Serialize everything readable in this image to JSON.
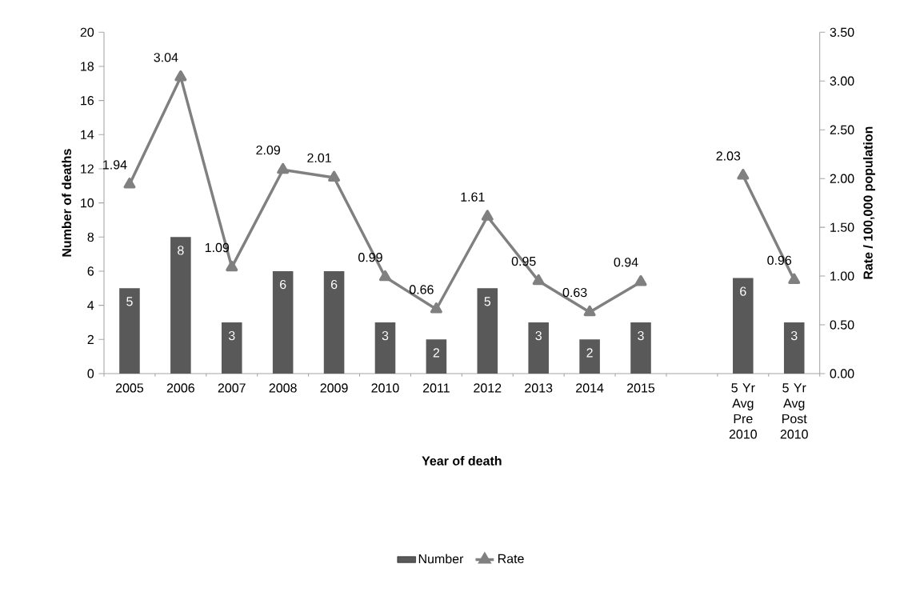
{
  "chart_data": {
    "type": "bar",
    "categories": [
      "2005",
      "2006",
      "2007",
      "2008",
      "2009",
      "2010",
      "2011",
      "2012",
      "2013",
      "2014",
      "2015",
      null,
      "5 Yr Avg Pre 2010",
      "5 Yr Avg Post 2010"
    ],
    "series": [
      {
        "name": "Number",
        "color": "#595959",
        "values": [
          5,
          8,
          3,
          6,
          6,
          3,
          2,
          5,
          3,
          2,
          3,
          null,
          5.6,
          3
        ],
        "value_labels": [
          "5",
          "8",
          "3",
          "6",
          "6",
          "3",
          "2",
          "5",
          "3",
          "2",
          "3",
          null,
          "6",
          "3"
        ]
      },
      {
        "name": "Rate",
        "type": "line",
        "axis": "y2",
        "color": "#808080",
        "values": [
          1.94,
          3.04,
          1.09,
          2.09,
          2.01,
          0.99,
          0.66,
          1.61,
          0.95,
          0.63,
          0.94,
          null,
          2.03,
          0.96
        ],
        "value_labels": [
          "1.94",
          "3.04",
          "1.09",
          "2.09",
          "2.01",
          "0.99",
          "0.66",
          "1.61",
          "0.95",
          "0.63",
          "0.94",
          null,
          "2.03",
          "0.96"
        ]
      }
    ],
    "xlabel": "Year of death",
    "ylabel": "Number of deaths",
    "y2label": "Rate / 100,000 population",
    "ylim": [
      0,
      20
    ],
    "yticks": [
      0,
      2,
      4,
      6,
      8,
      10,
      12,
      14,
      16,
      18,
      20
    ],
    "y2lim": [
      0,
      3.5
    ],
    "y2ticks": [
      {
        "value": 0,
        "label": "0.00"
      },
      {
        "value": 0.5,
        "label": "0.50"
      },
      {
        "value": 1,
        "label": "1.00"
      },
      {
        "value": 1.5,
        "label": "1.50"
      },
      {
        "value": 2,
        "label": "2.00"
      },
      {
        "value": 2.5,
        "label": "2.50"
      },
      {
        "value": 3,
        "label": "3.00"
      },
      {
        "value": 3.5,
        "label": "3.50"
      }
    ],
    "legend": "bottom",
    "marker": "triangle",
    "line_style": "solid"
  }
}
